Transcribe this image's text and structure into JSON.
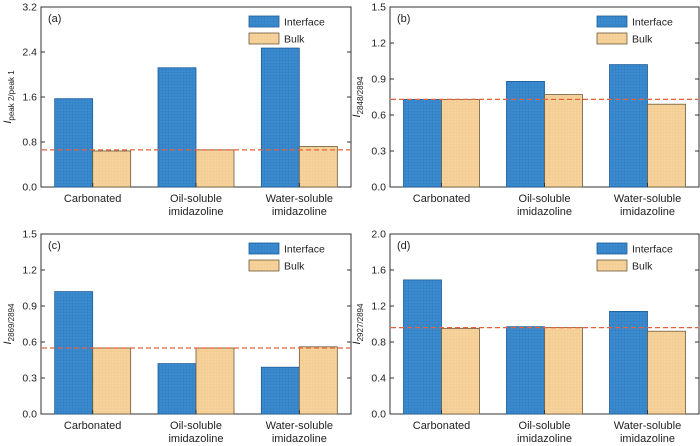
{
  "figure": {
    "colors": {
      "interface_fill": "#3a8bd0",
      "interface_stroke": "#1d5d99",
      "bulk_fill": "#f7d39c",
      "bulk_stroke": "#6b5a3a",
      "reference_line": "#e8613a",
      "axis": "#333333"
    }
  },
  "chart_data": [
    {
      "type": "bar",
      "panel_label": "(a)",
      "ylabel_main": "I",
      "ylabel_sub": "peak 2/peak 1",
      "categories": [
        [
          "Carbonated"
        ],
        [
          "Oil-soluble",
          "imidazoline"
        ],
        [
          "Water-soluble",
          "imidazoline"
        ]
      ],
      "series": [
        {
          "name": "Interface",
          "values": [
            1.57,
            2.12,
            2.47
          ]
        },
        {
          "name": "Bulk",
          "values": [
            0.64,
            0.66,
            0.72
          ]
        }
      ],
      "ylim": [
        0,
        3.2
      ],
      "yticks": [
        "0.0",
        "0.8",
        "1.6",
        "2.4",
        "3.2"
      ],
      "reference_line": 0.66,
      "legend": "top-right"
    },
    {
      "type": "bar",
      "panel_label": "(b)",
      "ylabel_main": "I",
      "ylabel_sub": "2848/2894",
      "categories": [
        [
          "Carbonated"
        ],
        [
          "Oil-soluble",
          "imidazoline"
        ],
        [
          "Water-soluble",
          "imidazoline"
        ]
      ],
      "series": [
        {
          "name": "Interface",
          "values": [
            0.73,
            0.88,
            1.02
          ]
        },
        {
          "name": "Bulk",
          "values": [
            0.73,
            0.77,
            0.69
          ]
        }
      ],
      "ylim": [
        0,
        1.5
      ],
      "yticks": [
        "0.0",
        "0.3",
        "0.6",
        "0.9",
        "1.2",
        "1.5"
      ],
      "reference_line": 0.73,
      "legend": "top-right"
    },
    {
      "type": "bar",
      "panel_label": "(c)",
      "ylabel_main": "I",
      "ylabel_sub": "2869/2894",
      "categories": [
        [
          "Carbonated"
        ],
        [
          "Oil-soluble",
          "imidazoline"
        ],
        [
          "Water-soluble",
          "imidazoline"
        ]
      ],
      "series": [
        {
          "name": "Interface",
          "values": [
            1.02,
            0.42,
            0.39
          ]
        },
        {
          "name": "Bulk",
          "values": [
            0.55,
            0.55,
            0.56
          ]
        }
      ],
      "ylim": [
        0,
        1.5
      ],
      "yticks": [
        "0.0",
        "0.3",
        "0.6",
        "0.9",
        "1.2",
        "1.5"
      ],
      "reference_line": 0.55,
      "legend": "top-right"
    },
    {
      "type": "bar",
      "panel_label": "(d)",
      "ylabel_main": "I",
      "ylabel_sub": "2927/2894",
      "categories": [
        [
          "Carbonated"
        ],
        [
          "Oil-soluble",
          "imidazoline"
        ],
        [
          "Water-soluble",
          "imidazoline"
        ]
      ],
      "series": [
        {
          "name": "Interface",
          "values": [
            1.49,
            0.97,
            1.14
          ]
        },
        {
          "name": "Bulk",
          "values": [
            0.95,
            0.96,
            0.92
          ]
        }
      ],
      "ylim": [
        0,
        2.0
      ],
      "yticks": [
        "0.0",
        "0.4",
        "0.8",
        "1.2",
        "1.6",
        "2.0"
      ],
      "reference_line": 0.96,
      "legend": "top-right"
    }
  ]
}
